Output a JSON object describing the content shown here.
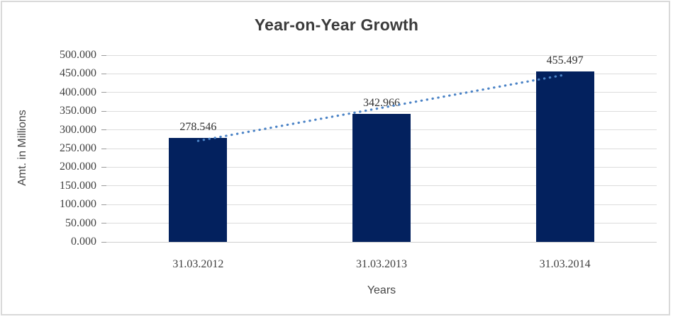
{
  "frame": {
    "border_color": "#d9d9d9",
    "background": "#ffffff"
  },
  "chart_data": {
    "type": "bar",
    "title": "Year-on-Year Growth",
    "categories": [
      "31.03.2012",
      "31.03.2013",
      "31.03.2014"
    ],
    "values": [
      278.546,
      342.966,
      455.497
    ],
    "data_labels": [
      "278.546",
      "342.966",
      "455.497"
    ],
    "xlabel": "Years",
    "ylabel": "Amt. in Millions",
    "ylim": [
      0,
      500
    ],
    "y_tick_step": 50,
    "y_tick_labels": [
      "0.000",
      "50.000",
      "100.000",
      "150.000",
      "200.000",
      "250.000",
      "300.000",
      "350.000",
      "400.000",
      "450.000",
      "500.000"
    ],
    "grid": true,
    "legend": "none",
    "bar_color": "#03215e",
    "grid_color": "#dcdcdc",
    "axis_line_color": "#cfcfcf",
    "trendline": {
      "type": "linear",
      "style": "dotted",
      "color": "#4b83c6"
    }
  }
}
